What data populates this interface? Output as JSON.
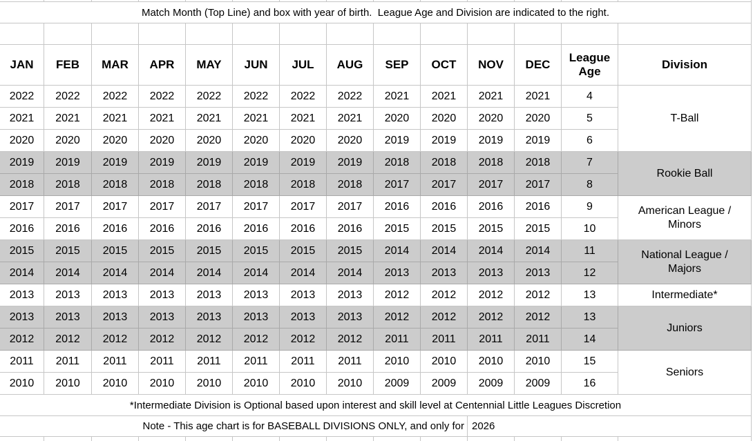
{
  "title": "Match Month (Top Line) and box with year of birth.  League Age and Division are indicated to the right.",
  "header": {
    "months": [
      "JAN",
      "FEB",
      "MAR",
      "APR",
      "MAY",
      "JUN",
      "JUL",
      "AUG",
      "SEP",
      "OCT",
      "NOV",
      "DEC"
    ],
    "league_age": "League Age",
    "division": "Division"
  },
  "rows": [
    {
      "jan_aug": "2022",
      "sep_dec": "2021",
      "league_age": "4",
      "shaded": false,
      "division_index": 0
    },
    {
      "jan_aug": "2021",
      "sep_dec": "2020",
      "league_age": "5",
      "shaded": false
    },
    {
      "jan_aug": "2020",
      "sep_dec": "2019",
      "league_age": "6",
      "shaded": false
    },
    {
      "jan_aug": "2019",
      "sep_dec": "2018",
      "league_age": "7",
      "shaded": true,
      "division_index": 1
    },
    {
      "jan_aug": "2018",
      "sep_dec": "2017",
      "league_age": "8",
      "shaded": true
    },
    {
      "jan_aug": "2017",
      "sep_dec": "2016",
      "league_age": "9",
      "shaded": false,
      "division_index": 2
    },
    {
      "jan_aug": "2016",
      "sep_dec": "2015",
      "league_age": "10",
      "shaded": false
    },
    {
      "jan_aug": "2015",
      "sep_dec": "2014",
      "league_age": "11",
      "shaded": true,
      "division_index": 3
    },
    {
      "jan_aug": "2014",
      "sep_dec": "2013",
      "league_age": "12",
      "shaded": true
    },
    {
      "jan_aug": "2013",
      "sep_dec": "2012",
      "league_age": "13",
      "shaded": false,
      "division_index": 4
    },
    {
      "jan_aug": "2013",
      "sep_dec": "2012",
      "league_age": "13",
      "shaded": true,
      "division_index": 5
    },
    {
      "jan_aug": "2012",
      "sep_dec": "2011",
      "league_age": "14",
      "shaded": true
    },
    {
      "jan_aug": "2011",
      "sep_dec": "2010",
      "league_age": "15",
      "shaded": false,
      "division_index": 6
    },
    {
      "jan_aug": "2010",
      "sep_dec": "2009",
      "league_age": "16",
      "shaded": false
    }
  ],
  "divisions": [
    {
      "label": "T-Ball",
      "rowspan": 3,
      "shaded": false
    },
    {
      "label": "Rookie Ball",
      "rowspan": 2,
      "shaded": true
    },
    {
      "label": "American League /\nMinors",
      "rowspan": 2,
      "shaded": false
    },
    {
      "label": "National League /\nMajors",
      "rowspan": 2,
      "shaded": true
    },
    {
      "label": "Intermediate*",
      "rowspan": 1,
      "shaded": false
    },
    {
      "label": "Juniors",
      "rowspan": 2,
      "shaded": true
    },
    {
      "label": "Seniors",
      "rowspan": 2,
      "shaded": false
    }
  ],
  "footnote": "*Intermediate Division is Optional based upon interest and skill level at Centennial Little Leagues Discretion",
  "note": {
    "text": "Note - This age chart is for BASEBALL DIVISIONS ONLY, and only for",
    "year": "2026"
  },
  "colors": {
    "shaded_row": "#cccccc",
    "gridline": "#c6c6c6",
    "shaded_gridline": "#a9a9a9",
    "text": "#000000"
  }
}
